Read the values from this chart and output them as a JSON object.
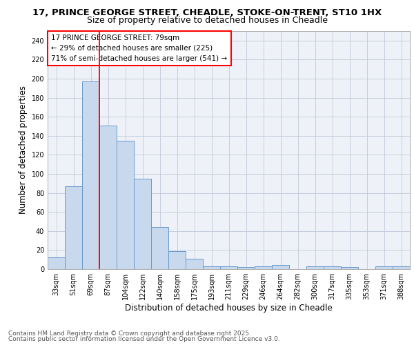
{
  "title_line1": "17, PRINCE GEORGE STREET, CHEADLE, STOKE-ON-TRENT, ST10 1HX",
  "title_line2": "Size of property relative to detached houses in Cheadle",
  "xlabel": "Distribution of detached houses by size in Cheadle",
  "ylabel": "Number of detached properties",
  "categories": [
    "33sqm",
    "51sqm",
    "69sqm",
    "87sqm",
    "104sqm",
    "122sqm",
    "140sqm",
    "158sqm",
    "175sqm",
    "193sqm",
    "211sqm",
    "229sqm",
    "246sqm",
    "264sqm",
    "282sqm",
    "300sqm",
    "317sqm",
    "335sqm",
    "353sqm",
    "371sqm",
    "388sqm"
  ],
  "values": [
    12,
    87,
    197,
    151,
    135,
    95,
    44,
    19,
    11,
    3,
    3,
    2,
    3,
    4,
    0,
    3,
    3,
    2,
    0,
    3,
    3
  ],
  "bar_color": "#c9d9ed",
  "bar_edge_color": "#6699cc",
  "grid_color": "#c0c8d8",
  "bg_color": "#eef2f8",
  "annotation_line1": "17 PRINCE GEORGE STREET: 79sqm",
  "annotation_line2": "← 29% of detached houses are smaller (225)",
  "annotation_line3": "71% of semi-detached houses are larger (541) →",
  "red_line_x": 2.5,
  "ylim": [
    0,
    250
  ],
  "yticks": [
    0,
    20,
    40,
    60,
    80,
    100,
    120,
    140,
    160,
    180,
    200,
    220,
    240
  ],
  "footer_line1": "Contains HM Land Registry data © Crown copyright and database right 2025.",
  "footer_line2": "Contains public sector information licensed under the Open Government Licence v3.0.",
  "title_fontsize": 9.5,
  "subtitle_fontsize": 9.0,
  "axis_label_fontsize": 8.5,
  "tick_fontsize": 7.0,
  "annotation_fontsize": 7.5,
  "footer_fontsize": 6.5
}
